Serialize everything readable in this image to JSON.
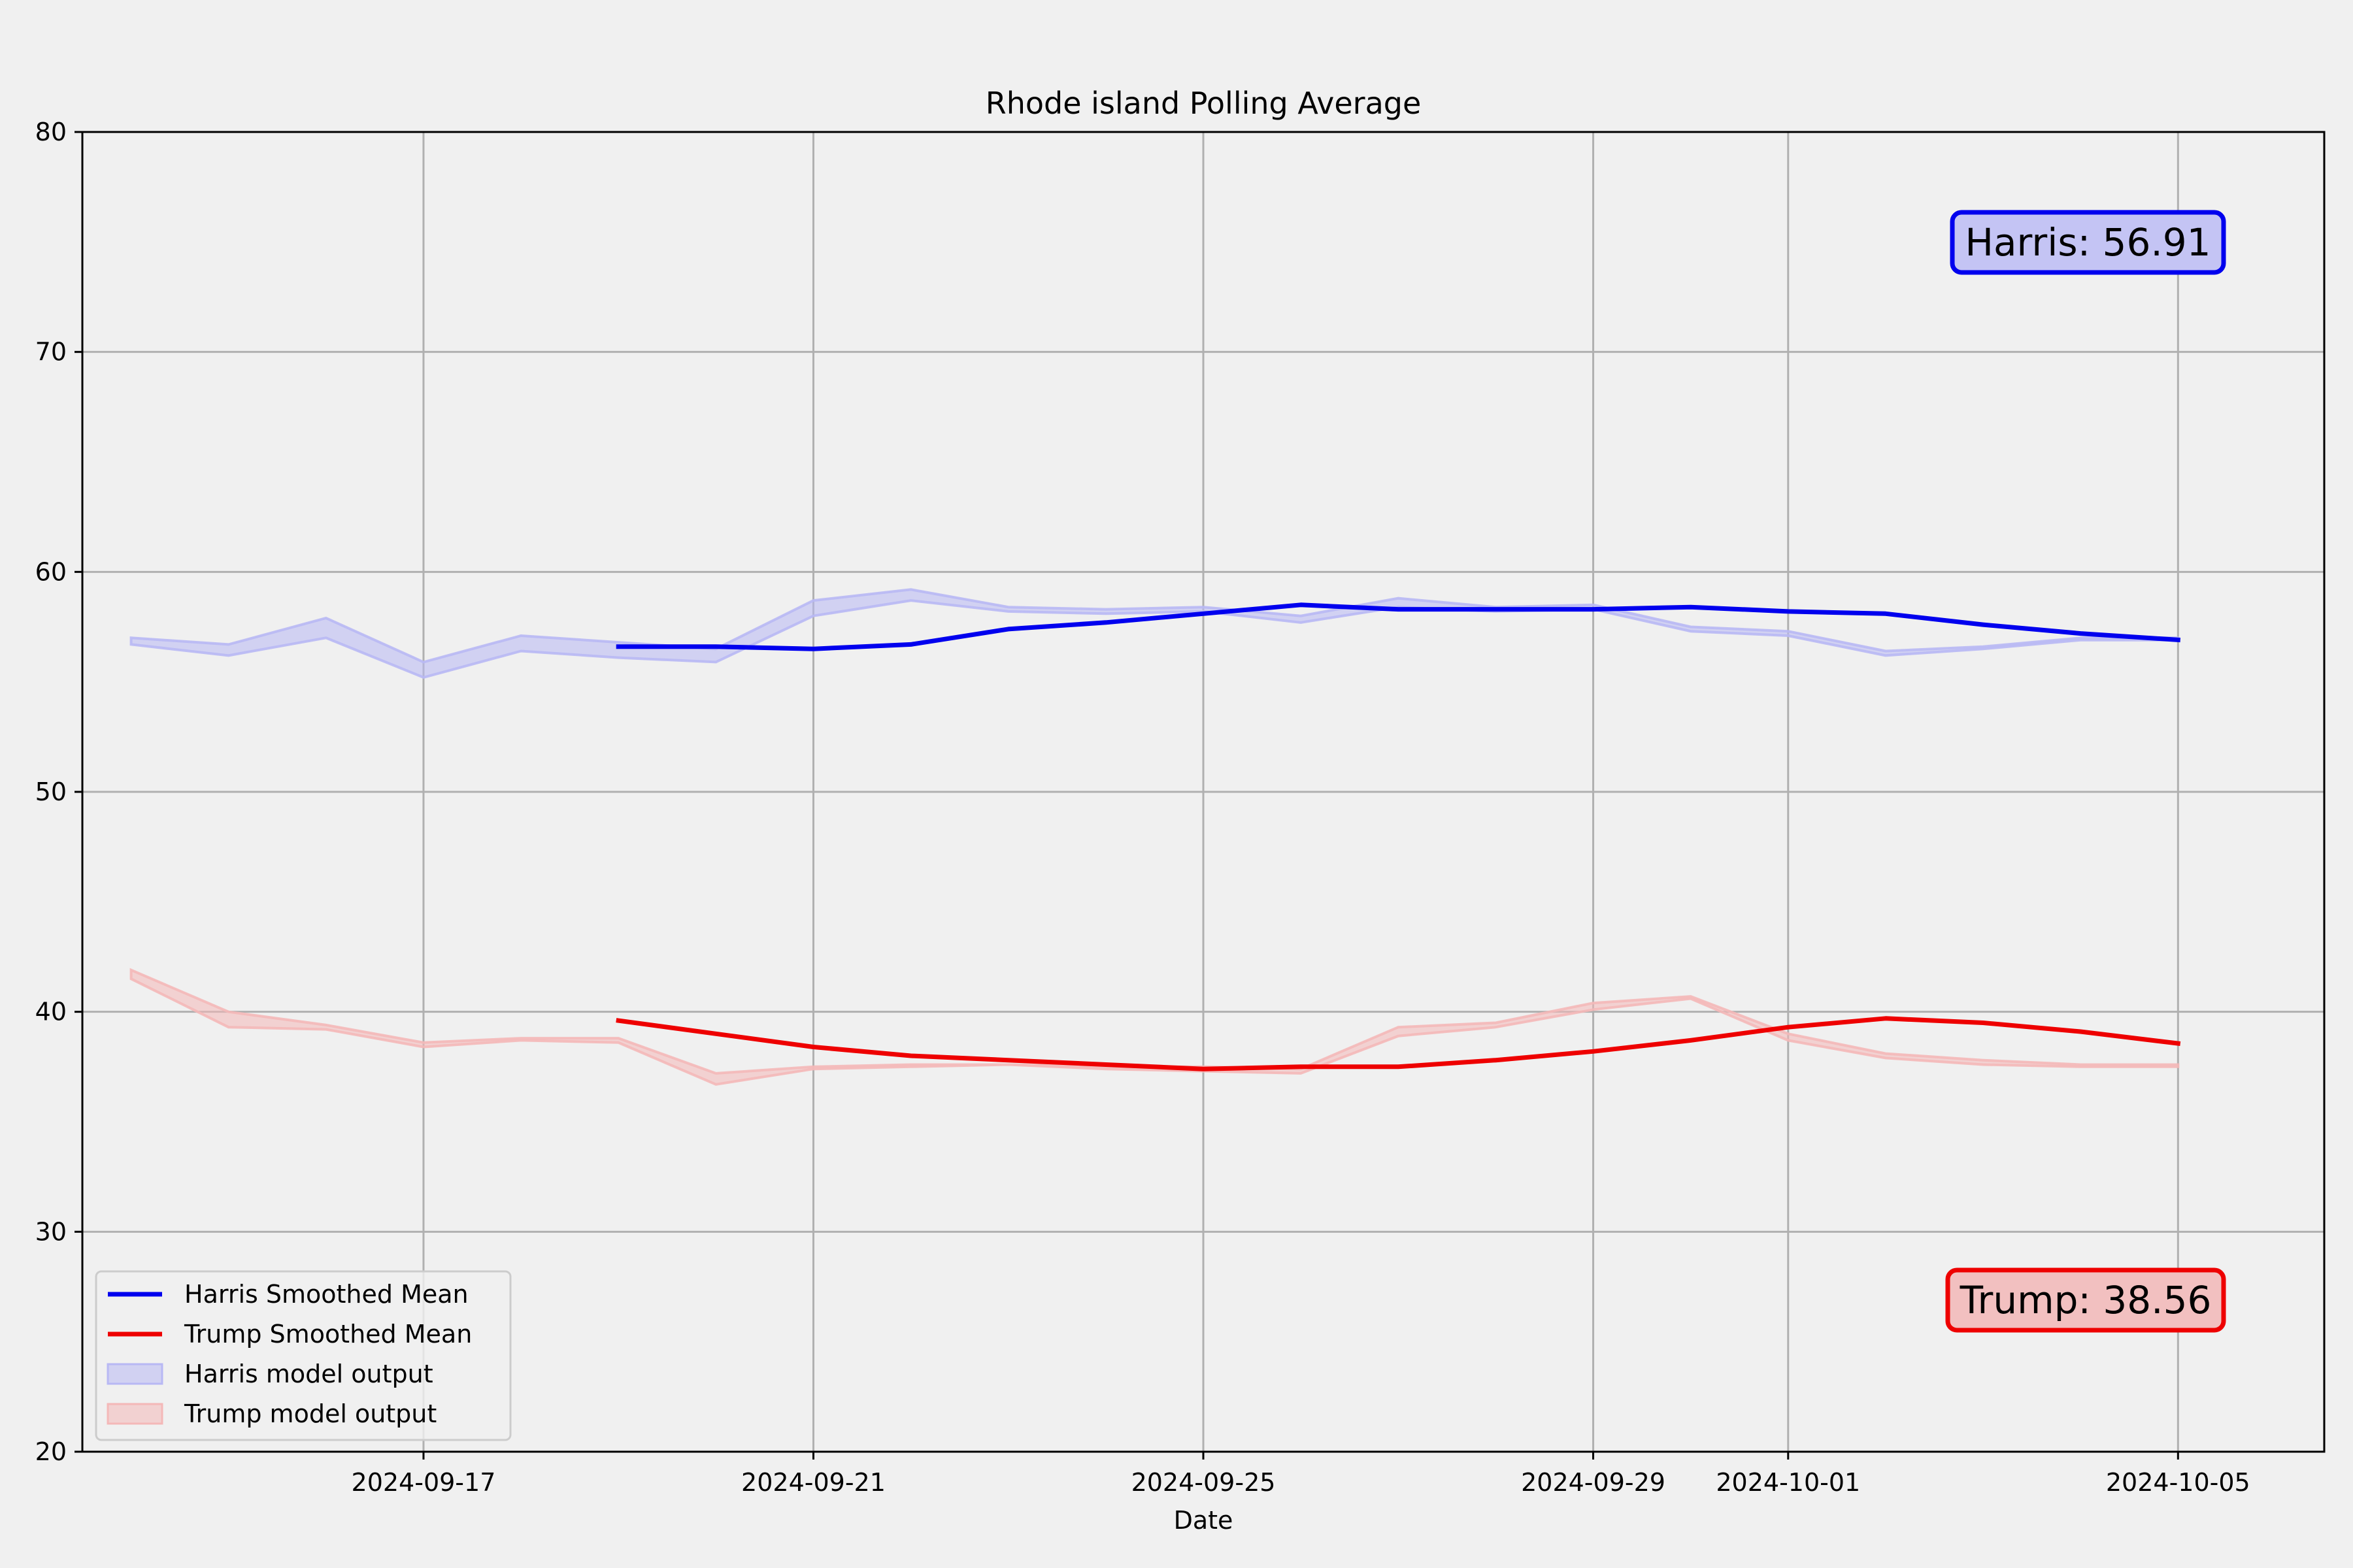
{
  "chart_data": {
    "type": "line",
    "title": "Rhode island Polling Average",
    "xlabel": "Date",
    "ylabel": "",
    "ylim": [
      20,
      80
    ],
    "xlim": [
      "2024-09-13T12:00",
      "2024-10-06T12:00"
    ],
    "grid": true,
    "y_ticks": [
      20,
      30,
      40,
      50,
      60,
      70,
      80
    ],
    "x_ticks": [
      "2024-09-17",
      "2024-09-21",
      "2024-09-25",
      "2024-09-29",
      "2024-10-01",
      "2024-10-05"
    ],
    "legend_position": "lower-left",
    "series": [
      {
        "name": "Harris Smoothed Mean",
        "kind": "line",
        "color": "#0000ee",
        "x": [
          "2024-09-19",
          "2024-09-20",
          "2024-09-21",
          "2024-09-22",
          "2024-09-23",
          "2024-09-24",
          "2024-09-25",
          "2024-09-26",
          "2024-09-27",
          "2024-09-28",
          "2024-09-29",
          "2024-09-30",
          "2024-10-01",
          "2024-10-02",
          "2024-10-03",
          "2024-10-04",
          "2024-10-05"
        ],
        "y": [
          56.6,
          56.6,
          56.5,
          56.7,
          57.4,
          57.7,
          58.1,
          58.5,
          58.3,
          58.3,
          58.3,
          58.4,
          58.2,
          58.1,
          57.6,
          57.2,
          56.91
        ]
      },
      {
        "name": "Trump Smoothed Mean",
        "kind": "line",
        "color": "#ee0000",
        "x": [
          "2024-09-19",
          "2024-09-20",
          "2024-09-21",
          "2024-09-22",
          "2024-09-23",
          "2024-09-24",
          "2024-09-25",
          "2024-09-26",
          "2024-09-27",
          "2024-09-28",
          "2024-09-29",
          "2024-09-30",
          "2024-10-01",
          "2024-10-02",
          "2024-10-03",
          "2024-10-04",
          "2024-10-05"
        ],
        "y": [
          39.6,
          39.0,
          38.4,
          38.0,
          37.8,
          37.6,
          37.4,
          37.5,
          37.5,
          37.8,
          38.2,
          38.7,
          39.3,
          39.7,
          39.5,
          39.1,
          38.56
        ]
      },
      {
        "name": "Harris model output",
        "kind": "band",
        "color": "#b8b8f4",
        "x": [
          "2024-09-14",
          "2024-09-15",
          "2024-09-16",
          "2024-09-17",
          "2024-09-18",
          "2024-09-19",
          "2024-09-20",
          "2024-09-21",
          "2024-09-22",
          "2024-09-23",
          "2024-09-24",
          "2024-09-25",
          "2024-09-26",
          "2024-09-27",
          "2024-09-28",
          "2024-09-29",
          "2024-09-30",
          "2024-10-01",
          "2024-10-02",
          "2024-10-03",
          "2024-10-04",
          "2024-10-05"
        ],
        "lower": [
          56.7,
          56.2,
          57.0,
          55.2,
          56.4,
          56.1,
          55.9,
          58.0,
          58.7,
          58.2,
          58.1,
          58.2,
          57.7,
          58.4,
          58.2,
          58.3,
          57.3,
          57.1,
          56.2,
          56.5,
          56.9,
          56.9
        ],
        "upper": [
          57.0,
          56.7,
          57.9,
          55.9,
          57.1,
          56.8,
          56.5,
          58.7,
          59.2,
          58.4,
          58.3,
          58.4,
          58.0,
          58.8,
          58.4,
          58.5,
          57.5,
          57.3,
          56.4,
          56.6,
          57.0,
          57.0
        ]
      },
      {
        "name": "Trump model output",
        "kind": "band",
        "color": "#f4b8b8",
        "x": [
          "2024-09-14",
          "2024-09-15",
          "2024-09-16",
          "2024-09-17",
          "2024-09-18",
          "2024-09-19",
          "2024-09-20",
          "2024-09-21",
          "2024-09-22",
          "2024-09-23",
          "2024-09-24",
          "2024-09-25",
          "2024-09-26",
          "2024-09-27",
          "2024-09-28",
          "2024-09-29",
          "2024-09-30",
          "2024-10-01",
          "2024-10-02",
          "2024-10-03",
          "2024-10-04",
          "2024-10-05"
        ],
        "lower": [
          41.5,
          39.3,
          39.2,
          38.4,
          38.7,
          38.6,
          36.7,
          37.4,
          37.5,
          37.6,
          37.4,
          37.3,
          37.2,
          38.9,
          39.3,
          40.1,
          40.6,
          38.7,
          37.9,
          37.6,
          37.5,
          37.5
        ],
        "upper": [
          41.9,
          40.0,
          39.4,
          38.6,
          38.8,
          38.8,
          37.2,
          37.5,
          37.6,
          37.6,
          37.5,
          37.5,
          37.4,
          39.3,
          39.5,
          40.4,
          40.7,
          39.0,
          38.1,
          37.8,
          37.6,
          37.6
        ]
      }
    ],
    "annotations": [
      {
        "text": "Harris: 56.91",
        "face": "#c4c4f4",
        "edge": "#0000ee",
        "position": "top-right"
      },
      {
        "text": "Trump: 38.56",
        "face": "#f2c0c0",
        "edge": "#ee0000",
        "position": "bottom-right"
      }
    ]
  }
}
